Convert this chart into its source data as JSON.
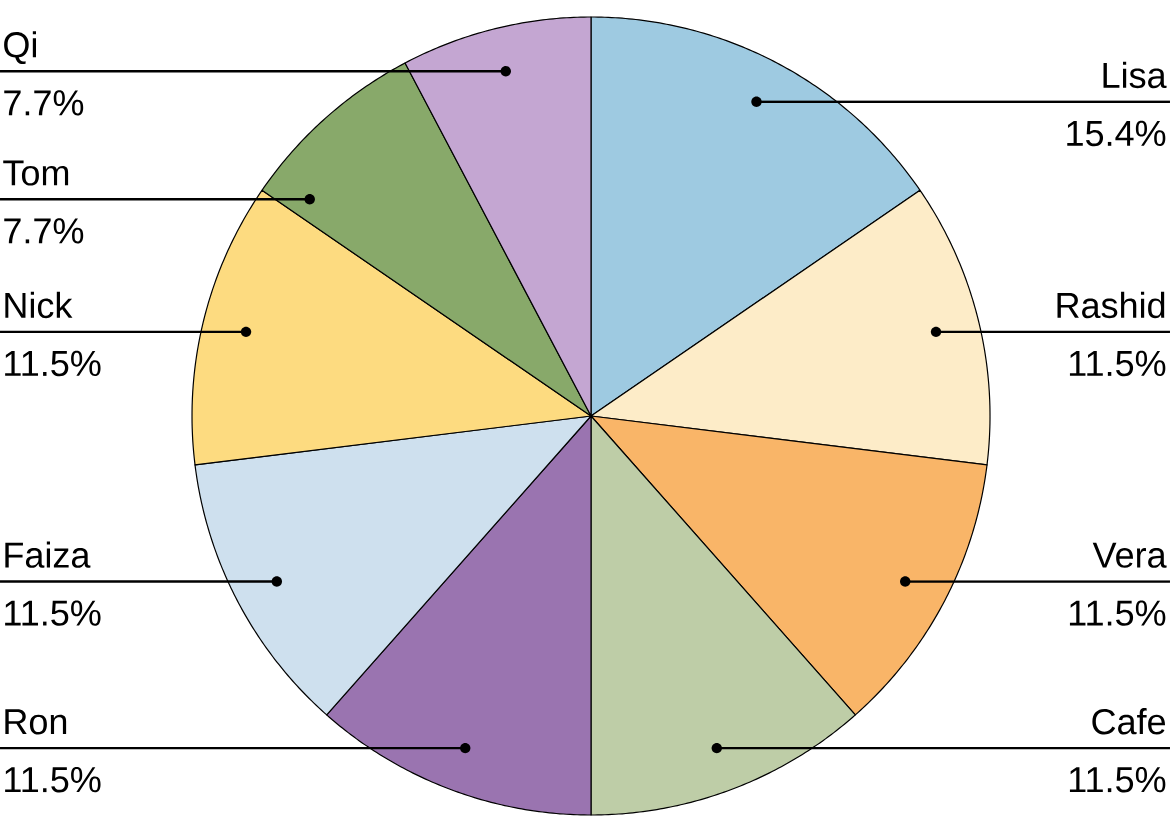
{
  "chart_data": {
    "type": "pie",
    "categories": [
      "Lisa",
      "Rashid",
      "Vera",
      "Cafe",
      "Ron",
      "Faiza",
      "Nick",
      "Tom",
      "Qi"
    ],
    "values": [
      15.4,
      11.5,
      11.5,
      11.5,
      11.5,
      11.5,
      11.5,
      7.7,
      7.7
    ],
    "value_labels": [
      "15.4%",
      "11.5%",
      "11.5%",
      "11.5%",
      "11.5%",
      "11.5%",
      "11.5%",
      "7.7%",
      "7.7%"
    ],
    "colors": [
      "#9ecae1",
      "#fdecc8",
      "#f9b568",
      "#becda7",
      "#9a74b0",
      "#cee0ee",
      "#fddb80",
      "#88a96a",
      "#c4a6d2"
    ]
  }
}
